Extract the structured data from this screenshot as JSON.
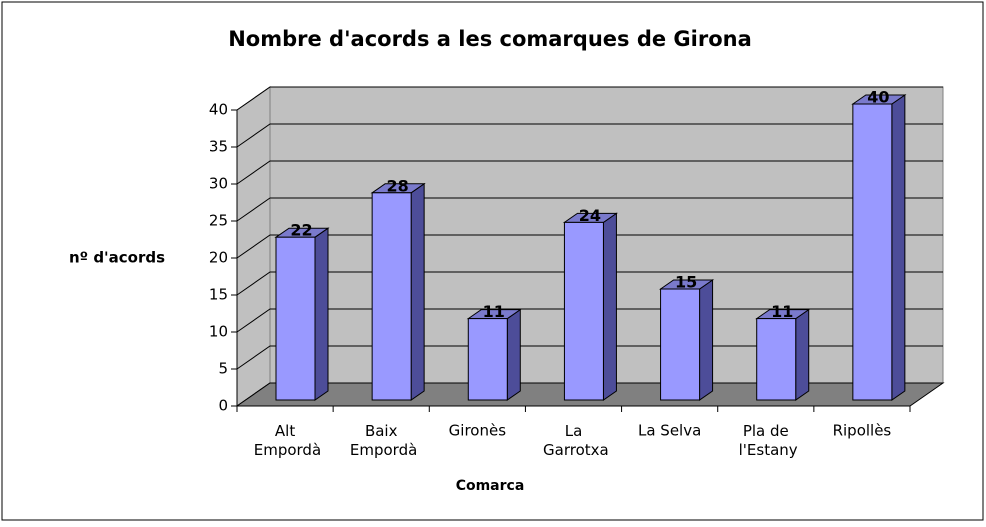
{
  "chart_data": {
    "type": "bar3d",
    "title": "Nombre d'acords a les comarques de Girona",
    "categories": [
      "Alt\nEmpordà",
      "Baix\nEmpordà",
      "Gironès",
      "La\nGarrotxa",
      "La Selva",
      "Pla de\nl'Estany",
      "Ripollès"
    ],
    "values": [
      22,
      28,
      11,
      24,
      15,
      11,
      40
    ],
    "color": "#9999ff",
    "ylim": [
      0,
      40
    ],
    "yticks": [
      0,
      5,
      10,
      15,
      20,
      25,
      30,
      35,
      40
    ],
    "grid": true,
    "x_label": "Comarca",
    "y_label": "nº d'acords"
  }
}
